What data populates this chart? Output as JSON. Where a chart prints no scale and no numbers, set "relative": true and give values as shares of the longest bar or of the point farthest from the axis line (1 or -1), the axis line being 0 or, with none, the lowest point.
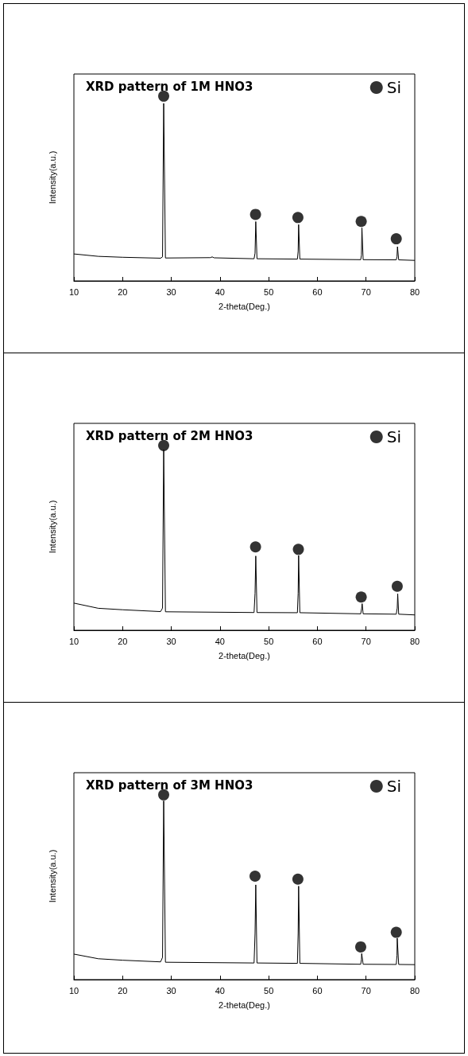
{
  "chart_data": [
    {
      "type": "line",
      "title": "XRD pattern of 1M HNO3",
      "xlabel": "2-theta(Deg.)",
      "ylabel": "Intensity(a.u.)",
      "relative": true,
      "xlim": [
        10,
        80
      ],
      "xticks": [
        10,
        20,
        30,
        40,
        50,
        60,
        70,
        80
      ],
      "grid": false,
      "legend": "top right",
      "series": [
        {
          "color": "#000000",
          "marker": "none",
          "x": [
            10,
            15,
            20,
            27.8,
            28.2,
            28.44,
            28.8,
            38.0,
            38.4,
            38.8,
            47.0,
            47.2,
            47.35,
            47.6,
            55.9,
            56.05,
            56.15,
            56.4,
            68.9,
            69.05,
            69.15,
            69.4,
            76.2,
            76.35,
            76.45,
            76.7,
            80
          ],
          "values": [
            0.146,
            0.133,
            0.128,
            0.123,
            0.13,
            0.961,
            0.124,
            0.126,
            0.13,
            0.125,
            0.12,
            0.15,
            0.321,
            0.12,
            0.118,
            0.16,
            0.305,
            0.118,
            0.115,
            0.14,
            0.288,
            0.115,
            0.114,
            0.13,
            0.185,
            0.114,
            0.111
          ]
        },
        {
          "type": "scatter",
          "name": "Si",
          "color": "#000000",
          "marker": "circle",
          "x": [
            28.44,
            47.3,
            56.0,
            69.0,
            76.2
          ],
          "values": [
            1.0,
            0.36,
            0.343,
            0.322,
            0.228
          ]
        }
      ]
    },
    {
      "type": "line",
      "title": "XRD pattern of 2M HNO3",
      "xlabel": "2-theta(Deg.)",
      "ylabel": "Intensity(a.u.)",
      "relative": true,
      "xlim": [
        10,
        80
      ],
      "xticks": [
        10,
        20,
        30,
        40,
        50,
        60,
        70,
        80
      ],
      "grid": false,
      "legend": "top right",
      "series": [
        {
          "color": "#000000",
          "marker": "none",
          "x": [
            10,
            15,
            20,
            27.8,
            28.2,
            28.44,
            28.8,
            47.0,
            47.2,
            47.35,
            47.6,
            55.9,
            56.05,
            56.15,
            56.4,
            68.9,
            69.1,
            69.2,
            69.4,
            76.2,
            76.4,
            76.5,
            76.7,
            80
          ],
          "values": [
            0.147,
            0.119,
            0.111,
            0.101,
            0.12,
            0.977,
            0.1,
            0.096,
            0.2,
            0.402,
            0.096,
            0.095,
            0.2,
            0.405,
            0.095,
            0.089,
            0.12,
            0.144,
            0.089,
            0.087,
            0.12,
            0.198,
            0.087,
            0.083
          ]
        },
        {
          "type": "scatter",
          "name": "Si",
          "color": "#000000",
          "marker": "circle",
          "x": [
            28.44,
            47.3,
            56.1,
            69.0,
            76.4
          ],
          "values": [
            1.0,
            0.451,
            0.438,
            0.18,
            0.238
          ]
        }
      ]
    },
    {
      "type": "line",
      "title": "XRD pattern of 3M HNO3",
      "xlabel": "2-theta(Deg.)",
      "ylabel": "Intensity(a.u.)",
      "relative": true,
      "xlim": [
        10,
        80
      ],
      "xticks": [
        10,
        20,
        30,
        40,
        50,
        60,
        70,
        80
      ],
      "grid": false,
      "legend": "top right",
      "series": [
        {
          "color": "#000000",
          "marker": "none",
          "x": [
            10,
            15,
            20,
            27.8,
            28.2,
            28.44,
            28.8,
            47.0,
            47.2,
            47.35,
            47.6,
            55.9,
            56.05,
            56.15,
            56.4,
            68.9,
            69.05,
            69.1,
            69.4,
            76.2,
            76.35,
            76.4,
            76.7,
            80
          ],
          "values": [
            0.138,
            0.113,
            0.105,
            0.096,
            0.12,
            0.968,
            0.094,
            0.09,
            0.25,
            0.513,
            0.09,
            0.088,
            0.25,
            0.506,
            0.088,
            0.083,
            0.11,
            0.141,
            0.083,
            0.082,
            0.13,
            0.224,
            0.082,
            0.081
          ]
        },
        {
          "type": "scatter",
          "name": "Si",
          "color": "#000000",
          "marker": "circle",
          "x": [
            28.44,
            47.2,
            56.0,
            68.9,
            76.2
          ],
          "values": [
            1.0,
            0.56,
            0.544,
            0.177,
            0.256
          ]
        }
      ]
    }
  ]
}
